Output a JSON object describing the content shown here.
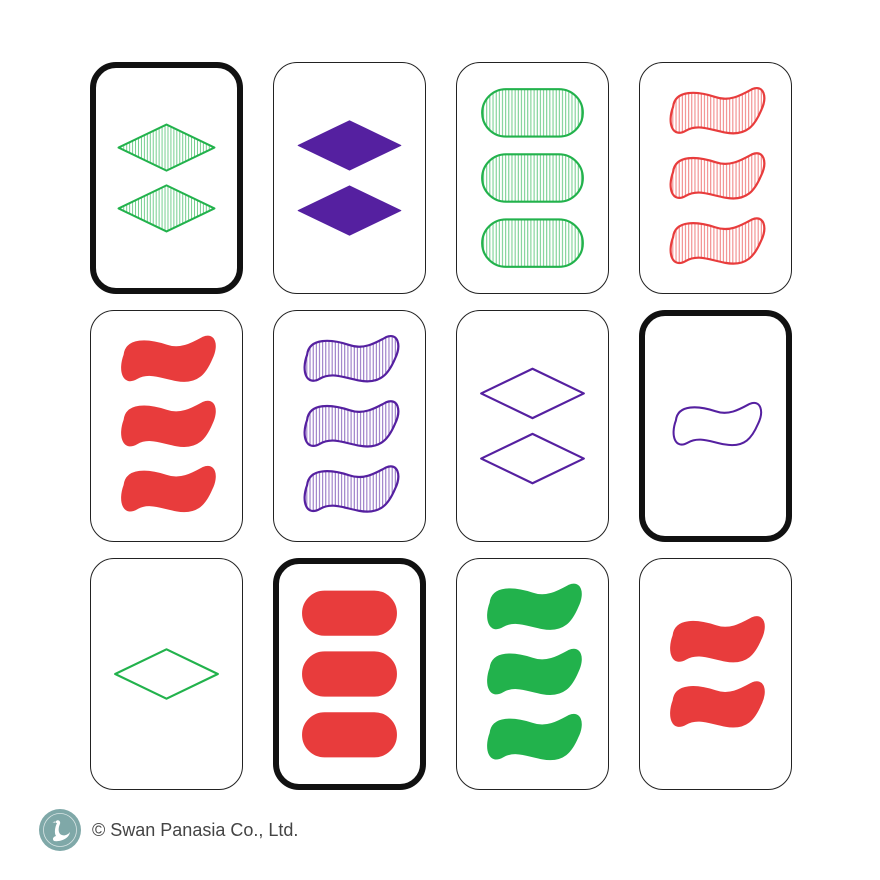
{
  "board": {
    "cards": [
      {
        "count": 2,
        "shape": "diamond",
        "fill": "striped",
        "color": "green",
        "selected": true
      },
      {
        "count": 2,
        "shape": "diamond",
        "fill": "solid",
        "color": "purple",
        "selected": false
      },
      {
        "count": 3,
        "shape": "oval",
        "fill": "striped",
        "color": "green",
        "selected": false
      },
      {
        "count": 3,
        "shape": "squiggle",
        "fill": "striped",
        "color": "red",
        "selected": false
      },
      {
        "count": 3,
        "shape": "squiggle",
        "fill": "solid",
        "color": "red",
        "selected": false
      },
      {
        "count": 3,
        "shape": "squiggle",
        "fill": "striped",
        "color": "purple",
        "selected": false
      },
      {
        "count": 2,
        "shape": "diamond",
        "fill": "open",
        "color": "purple",
        "selected": false
      },
      {
        "count": 1,
        "shape": "squiggle",
        "fill": "open",
        "color": "purple",
        "selected": true
      },
      {
        "count": 1,
        "shape": "diamond",
        "fill": "open",
        "color": "green",
        "selected": false
      },
      {
        "count": 3,
        "shape": "oval",
        "fill": "solid",
        "color": "red",
        "selected": true
      },
      {
        "count": 3,
        "shape": "squiggle",
        "fill": "solid",
        "color": "green",
        "selected": false
      },
      {
        "count": 2,
        "shape": "squiggle",
        "fill": "solid",
        "color": "red",
        "selected": false
      }
    ]
  },
  "colors": {
    "red": "#e83c3c",
    "green": "#22b24c",
    "purple": "#5520a0",
    "selected_border": "#111111",
    "card_border": "#222222"
  },
  "footer": {
    "logo_icon": "swan-logo-icon",
    "copyright": "© Swan Panasia Co., Ltd."
  }
}
